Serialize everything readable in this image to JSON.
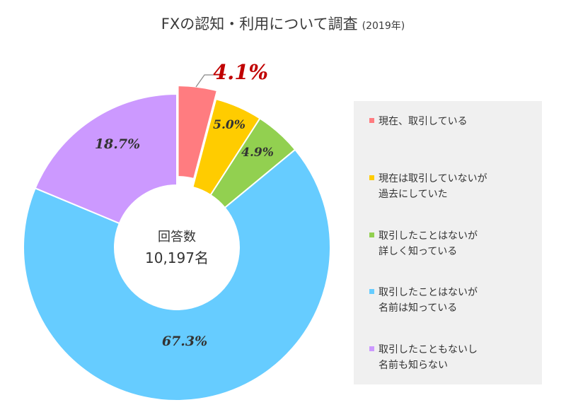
{
  "title": "FXの認知・利用について調査",
  "title_year": "(2019年)",
  "center": {
    "label": "回答数",
    "value": "10,197名"
  },
  "chart_data": {
    "type": "pie",
    "title": "FXの認知・利用について調査 (2019年)",
    "unit": "%",
    "slices": [
      {
        "label": "現在、取引している",
        "value": 4.1,
        "display": "4.1%",
        "color": "#ff7c80",
        "exploded": true
      },
      {
        "label": "現在は取引していないが過去にしていた",
        "value": 5.0,
        "display": "5.0%",
        "color": "#ffcc00"
      },
      {
        "label": "取引したことはないが詳しく知っている",
        "value": 4.9,
        "display": "4.9%",
        "color": "#92d050"
      },
      {
        "label": "取引したことはないが名前は知っている",
        "value": 67.3,
        "display": "67.3%",
        "color": "#66ccff"
      },
      {
        "label": "取引したこともないし名前も知らない",
        "value": 18.7,
        "display": "18.7%",
        "color": "#cc99ff"
      }
    ],
    "highlight_color": "#c00000",
    "legend_position": "right"
  },
  "legend": [
    {
      "lines": [
        "現在、取引している"
      ],
      "color": "#ff7c80"
    },
    {
      "lines": [
        "現在は取引していないが",
        "過去にしていた"
      ],
      "color": "#ffcc00"
    },
    {
      "lines": [
        "取引したことはないが",
        "詳しく知っている"
      ],
      "color": "#92d050"
    },
    {
      "lines": [
        "取引したことはないが",
        "名前は知っている"
      ],
      "color": "#66ccff"
    },
    {
      "lines": [
        "取引したこともないし",
        "名前も知らない"
      ],
      "color": "#cc99ff"
    }
  ]
}
